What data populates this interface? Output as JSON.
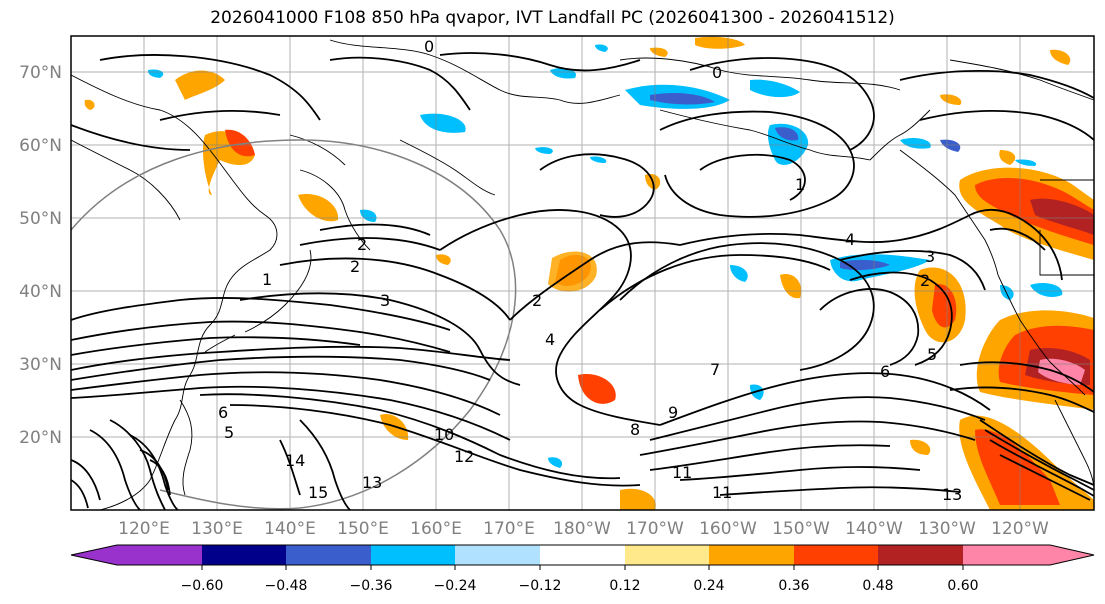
{
  "title": "2026041000 F108 850 hPa qvapor, IVT Landfall PC (2026041300 - 2026041512)",
  "lat_labels": [
    "70°N",
    "60°N",
    "50°N",
    "40°N",
    "30°N",
    "20°N"
  ],
  "lon_labels": [
    "120°E",
    "130°E",
    "140°E",
    "150°E",
    "160°E",
    "170°E",
    "180°W",
    "170°W",
    "160°W",
    "150°W",
    "140°W",
    "130°W",
    "120°W"
  ],
  "colorbar": {
    "colors": [
      "#9932cc",
      "#00008b",
      "#3a5fcd",
      "#00bfff",
      "#b0e2ff",
      "#ffffff",
      "#ffe98a",
      "#ffa500",
      "#ff4000",
      "#b22222",
      "#ff85a8"
    ],
    "tick_labels": [
      "−0.60",
      "−0.48",
      "−0.36",
      "−0.24",
      "−0.12",
      "0.12",
      "0.24",
      "0.36",
      "0.48",
      "0.60"
    ]
  },
  "contour_labels": [
    "0",
    "0",
    "1",
    "1",
    "2",
    "2",
    "2",
    "2",
    "3",
    "3",
    "4",
    "4",
    "5",
    "5",
    "6",
    "6",
    "7",
    "8",
    "9",
    "10",
    "11",
    "11",
    "12",
    "13",
    "13",
    "14",
    "15"
  ],
  "colors": {
    "positive": "#ffa500",
    "positive_strong": "#ff4000",
    "positive_max": "#ff85a8",
    "negative": "#00bfff",
    "negative_strong": "#3a5fcd"
  }
}
